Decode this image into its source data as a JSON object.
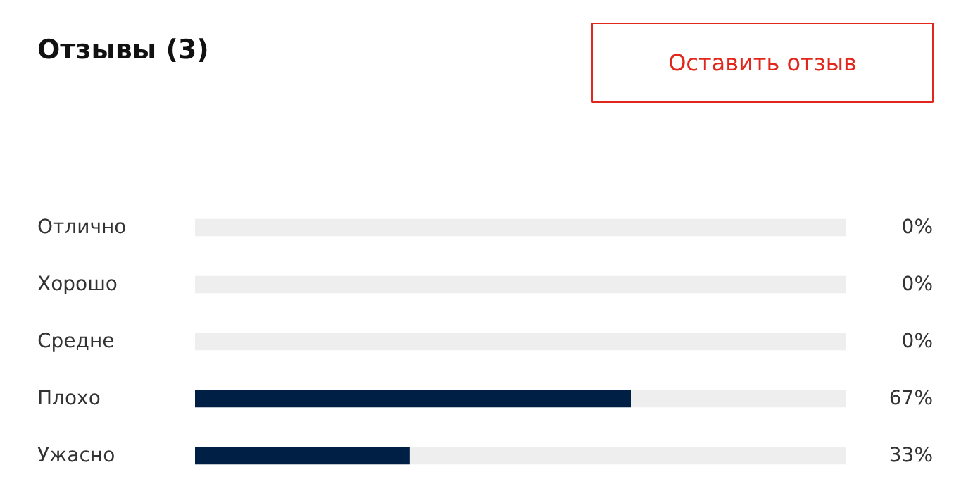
{
  "chart_data": {
    "type": "bar",
    "orientation": "horizontal",
    "stacked": true,
    "title": "Отзывы (3)",
    "categories": [
      "Отлично",
      "Хорошо",
      "Средне",
      "Плохо",
      "Ужасно"
    ],
    "series": [
      {
        "color": "#001f45",
        "values": [
          0,
          0,
          0,
          67,
          33
        ],
        "value_labels": [
          "0%",
          "0%",
          "0%",
          "67%",
          "33%"
        ]
      },
      {
        "color": "#eeeeee",
        "values": [
          100,
          100,
          100,
          33,
          67
        ]
      }
    ],
    "xlim": [
      0,
      100
    ],
    "tick_labels": "y",
    "grid": false,
    "legend": false,
    "annotations": [
      "Оставить отзыв"
    ]
  }
}
